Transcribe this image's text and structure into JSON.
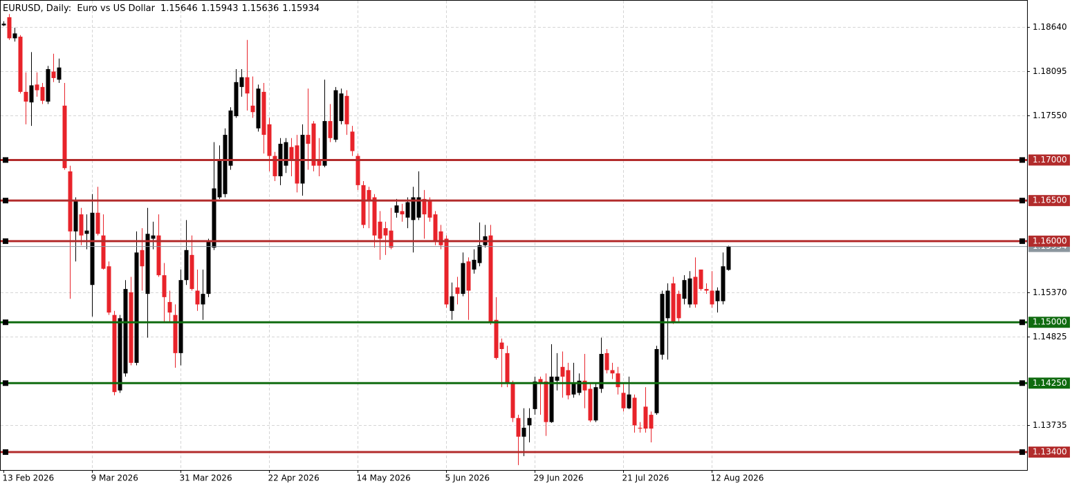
{
  "chart_data": {
    "type": "candlestick",
    "title": "EURUSD, Daily:  Euro vs US Dollar",
    "categories": [
      "13 Feb 2026",
      null,
      null,
      null,
      null,
      null,
      null,
      null,
      null,
      null,
      null,
      null,
      null,
      null,
      null,
      null,
      "9 Mar 2026",
      null,
      null,
      null,
      null,
      null,
      null,
      null,
      null,
      null,
      null,
      null,
      null,
      null,
      null,
      null,
      "31 Mar 2026",
      null,
      null,
      null,
      null,
      null,
      null,
      null,
      null,
      null,
      null,
      null,
      null,
      null,
      null,
      null,
      "22 Apr 2026",
      null,
      null,
      null,
      null,
      null,
      null,
      null,
      null,
      null,
      null,
      null,
      null,
      null,
      null,
      null,
      "14 May 2026",
      null,
      null,
      null,
      null,
      null,
      null,
      null,
      null,
      null,
      null,
      null,
      null,
      null,
      null,
      null,
      "5 Jun 2026",
      null,
      null,
      null,
      null,
      null,
      null,
      null,
      null,
      null,
      null,
      null,
      null,
      null,
      null,
      null,
      "29 Jun 2026",
      null,
      null,
      null,
      null,
      null,
      null,
      null,
      null,
      null,
      null,
      null,
      null,
      null,
      null,
      null,
      "21 Jul 2026",
      null,
      null,
      null,
      null,
      null,
      null,
      null,
      null,
      null,
      null,
      null,
      null,
      null,
      null,
      null,
      "12 Aug 2026",
      null,
      null,
      null
    ],
    "open": [
      1.1866,
      1.1876,
      1.185,
      1.1852,
      1.1784,
      1.1771,
      1.1793,
      1.179,
      1.1772,
      1.1809,
      1.1799,
      1.1767,
      1.1686,
      1.1612,
      1.1633,
      1.1609,
      1.1546,
      1.1635,
      1.1607,
      1.1569,
      1.1509,
      1.1416,
      1.1437,
      1.1537,
      1.145,
      1.1589,
      1.1535,
      1.1603,
      1.1607,
      1.1558,
      1.1525,
      1.1509,
      1.1462,
      1.1552,
      1.1583,
      1.1539,
      1.1522,
      1.1535,
      1.1592,
      1.1654,
      1.1658,
      1.1693,
      1.1754,
      1.179,
      1.1802,
      1.1767,
      1.1739,
      1.1784,
      1.1744,
      1.1705,
      1.168,
      1.1693,
      1.1716,
      1.1718,
      1.1671,
      1.1731,
      1.1745,
      1.1701,
      1.1693,
      1.1748,
      1.1725,
      1.1748,
      1.1779,
      1.1735,
      1.1705,
      1.1669,
      1.1663,
      1.1654,
      1.1624,
      1.1616,
      1.1613,
      1.1635,
      1.1637,
      1.1629,
      1.1626,
      1.1629,
      1.1652,
      1.165,
      1.1633,
      1.1612,
      1.1603,
      1.1514,
      1.1543,
      1.1535,
      1.1575,
      1.1565,
      1.1573,
      1.1595,
      1.1607,
      1.1503,
      1.1475,
      1.1462,
      1.1424,
      1.1382,
      1.1359,
      1.1373,
      1.1393,
      1.143,
      1.1427,
      1.1377,
      1.1428,
      1.1445,
      1.1441,
      1.1411,
      1.1413,
      1.1428,
      1.1418,
      1.1379,
      1.1418,
      1.1462,
      1.1441,
      1.1437,
      1.1413,
      1.1394,
      1.1407,
      1.137,
      1.1396,
      1.1386,
      1.1388,
      1.146,
      1.1505,
      1.1548,
      1.1535,
      1.1529,
      1.1522,
      1.1556,
      1.1565,
      1.1541,
      1.1539,
      1.1526,
      1.1526,
      1.15646
    ],
    "high": [
      1.1871,
      1.188,
      1.1863,
      1.1854,
      1.1808,
      1.1833,
      1.1808,
      1.1795,
      1.1816,
      1.1831,
      1.1825,
      1.1795,
      1.1693,
      1.1654,
      1.1641,
      1.1633,
      1.1658,
      1.1667,
      1.1633,
      1.1575,
      1.1514,
      1.1509,
      1.1552,
      1.1556,
      1.1612,
      1.1616,
      1.1641,
      1.1624,
      1.1633,
      1.1573,
      1.1539,
      1.1522,
      1.1565,
      1.1626,
      1.1607,
      1.1565,
      1.1565,
      1.1603,
      1.1722,
      1.1718,
      1.1739,
      1.1765,
      1.1812,
      1.1812,
      1.1848,
      1.1803,
      1.1793,
      1.1795,
      1.1752,
      1.171,
      1.1727,
      1.1727,
      1.1727,
      1.1731,
      1.1744,
      1.1788,
      1.1748,
      1.1727,
      1.1799,
      1.1769,
      1.179,
      1.1788,
      1.1786,
      1.1742,
      1.1708,
      1.1674,
      1.1667,
      1.1658,
      1.1637,
      1.1624,
      1.1641,
      1.1652,
      1.1646,
      1.1654,
      1.1667,
      1.1686,
      1.1663,
      1.1654,
      1.1637,
      1.162,
      1.1607,
      1.1549,
      1.1556,
      1.1586,
      1.158,
      1.159,
      1.1623,
      1.162,
      1.162,
      1.1531,
      1.148,
      1.1471,
      1.1428,
      1.1386,
      1.1394,
      1.1394,
      1.1433,
      1.1433,
      1.1437,
      1.1473,
      1.1462,
      1.1464,
      1.145,
      1.145,
      1.1437,
      1.1461,
      1.1424,
      1.1424,
      1.1481,
      1.1467,
      1.145,
      1.1445,
      1.1424,
      1.1433,
      1.1411,
      1.1377,
      1.142,
      1.139,
      1.1471,
      1.1539,
      1.1548,
      1.1556,
      1.1539,
      1.1558,
      1.1563,
      1.158,
      1.1565,
      1.1548,
      1.1563,
      1.1543,
      1.1586,
      1.15943
    ],
    "low": [
      1.1865,
      1.1848,
      1.1846,
      1.1782,
      1.1744,
      1.1742,
      1.1778,
      1.1769,
      1.1769,
      1.1796,
      1.1795,
      1.1688,
      1.1529,
      1.1575,
      1.1595,
      1.159,
      1.1507,
      1.1607,
      1.1565,
      1.1509,
      1.141,
      1.1413,
      1.1433,
      1.1447,
      1.1447,
      1.1539,
      1.1481,
      1.159,
      1.1556,
      1.1501,
      1.1501,
      1.1444,
      1.1447,
      1.1546,
      1.1539,
      1.1514,
      1.1503,
      1.1531,
      1.1589,
      1.1652,
      1.1654,
      1.1688,
      1.1752,
      1.1778,
      1.1761,
      1.1752,
      1.1735,
      1.1708,
      1.1686,
      1.1674,
      1.1669,
      1.1684,
      1.168,
      1.166,
      1.1656,
      1.1688,
      1.1686,
      1.168,
      1.1691,
      1.1722,
      1.1722,
      1.1744,
      1.1731,
      1.1705,
      1.1663,
      1.1616,
      1.1616,
      1.1592,
      1.1577,
      1.1583,
      1.159,
      1.1629,
      1.1624,
      1.1616,
      1.1586,
      1.1626,
      1.1603,
      1.1624,
      1.1595,
      1.159,
      1.1518,
      1.1503,
      1.1522,
      1.1532,
      1.1503,
      1.156,
      1.1569,
      1.1592,
      1.1497,
      1.1454,
      1.142,
      1.142,
      1.1377,
      1.1324,
      1.1335,
      1.1352,
      1.1386,
      1.1386,
      1.136,
      1.1376,
      1.1416,
      1.1407,
      1.1405,
      1.1407,
      1.141,
      1.1394,
      1.1377,
      1.1377,
      1.1413,
      1.1437,
      1.143,
      1.1411,
      1.139,
      1.1393,
      1.1364,
      1.1364,
      1.1364,
      1.1352,
      1.1386,
      1.1454,
      1.1454,
      1.1498,
      1.1501,
      1.1522,
      1.1518,
      1.1518,
      1.1539,
      1.1535,
      1.1518,
      1.1512,
      1.1522,
      1.15636
    ],
    "close": [
      1.1868,
      1.185,
      1.1856,
      1.1784,
      1.1772,
      1.1792,
      1.1786,
      1.1773,
      1.1812,
      1.1801,
      1.1814,
      1.169,
      1.1612,
      1.165,
      1.1607,
      1.1613,
      1.1635,
      1.1609,
      1.1566,
      1.1512,
      1.1414,
      1.1505,
      1.1541,
      1.145,
      1.1586,
      1.1569,
      1.1609,
      1.1607,
      1.1558,
      1.1531,
      1.1512,
      1.1462,
      1.1552,
      1.1589,
      1.1541,
      1.1522,
      1.1535,
      1.1599,
      1.1665,
      1.1699,
      1.1731,
      1.1761,
      1.1796,
      1.1802,
      1.1782,
      1.1759,
      1.1788,
      1.1731,
      1.1705,
      1.168,
      1.172,
      1.1722,
      1.1701,
      1.1671,
      1.1731,
      1.172,
      1.1693,
      1.1693,
      1.1748,
      1.1727,
      1.1786,
      1.1782,
      1.1744,
      1.1711,
      1.1669,
      1.162,
      1.165,
      1.1607,
      1.1603,
      1.1607,
      1.1592,
      1.1644,
      1.1633,
      1.1648,
      1.1654,
      1.1654,
      1.1633,
      1.1629,
      1.1599,
      1.1595,
      1.1522,
      1.1532,
      1.1535,
      1.1573,
      1.1539,
      1.1577,
      1.1595,
      1.1606,
      1.1501,
      1.1456,
      1.1467,
      1.1424,
      1.1382,
      1.1359,
      1.137,
      1.1382,
      1.1427,
      1.1424,
      1.1377,
      1.1433,
      1.1433,
      1.1433,
      1.141,
      1.1424,
      1.1428,
      1.1416,
      1.1379,
      1.142,
      1.1461,
      1.1441,
      1.1437,
      1.142,
      1.1394,
      1.1411,
      1.1373,
      1.1369,
      1.1369,
      1.1369,
      1.1467,
      1.1535,
      1.1539,
      1.1501,
      1.1505,
      1.1552,
      1.1554,
      1.1522,
      1.1541,
      1.1539,
      1.1522,
      1.1539,
      1.1569,
      1.15934
    ],
    "up_color": "#000000",
    "down_color": "#e8232a",
    "price_line_color": "#8b969e",
    "ylim": [
      1.13179,
      1.18972
    ],
    "yticks": [
      {
        "value": 1.1864,
        "label": "1.18640"
      },
      {
        "value": 1.18095,
        "label": "1.18095"
      },
      {
        "value": 1.1755,
        "label": "1.17550"
      },
      {
        "value": 1.1537,
        "label": "1.15370"
      },
      {
        "value": 1.14825,
        "label": "1.14825"
      },
      {
        "value": 1.13735,
        "label": "1.13735"
      }
    ],
    "grid": true,
    "levels": [
      {
        "value": 1.17,
        "label": "1.17000",
        "color": "#b22b2b"
      },
      {
        "value": 1.165,
        "label": "1.16500",
        "color": "#b22b2b"
      },
      {
        "value": 1.16,
        "label": "1.16000",
        "color": "#b22b2b"
      },
      {
        "value": 1.15,
        "label": "1.15000",
        "color": "#0f6b0f"
      },
      {
        "value": 1.1425,
        "label": "1.14250",
        "color": "#0f6b0f"
      },
      {
        "value": 1.134,
        "label": "1.13400",
        "color": "#b22b2b"
      }
    ]
  }
}
